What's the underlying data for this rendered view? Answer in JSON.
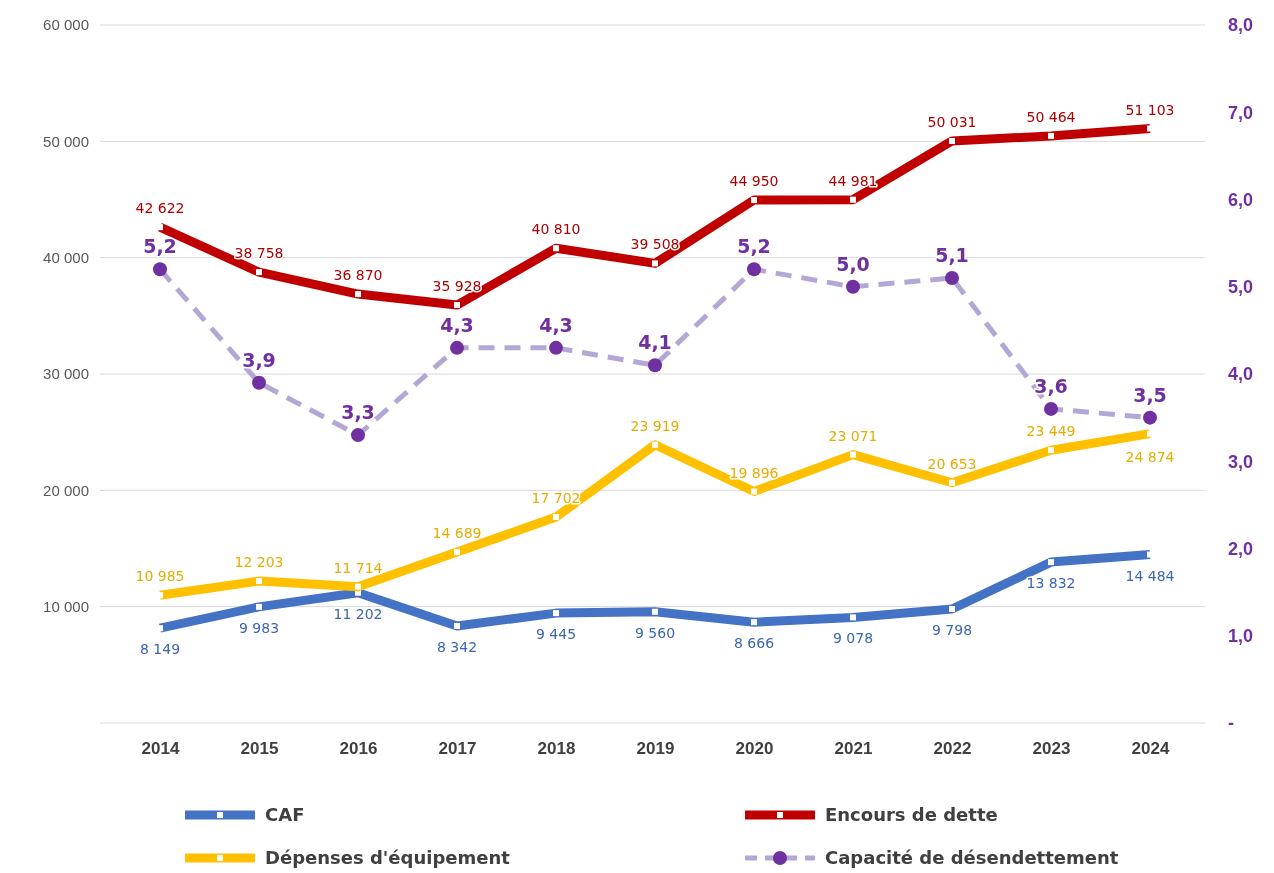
{
  "chart_data": {
    "type": "line",
    "categories": [
      "2014",
      "2015",
      "2016",
      "2017",
      "2018",
      "2019",
      "2020",
      "2021",
      "2022",
      "2023",
      "2024"
    ],
    "series": [
      {
        "name": "CAF",
        "color": "#4472c4",
        "marker": "square",
        "values": [
          8149,
          9983,
          11202,
          8342,
          9445,
          9560,
          8666,
          9078,
          9798,
          13832,
          14484
        ],
        "value_labels": [
          "8 149",
          "9 983",
          "11 202",
          "8 342",
          "9 445",
          "9 560",
          "8 666",
          "9 078",
          "9 798",
          "13 832",
          "14 484"
        ]
      },
      {
        "name": "Encours de dette",
        "color": "#c00000",
        "marker": "square",
        "values": [
          42622,
          38758,
          36870,
          35928,
          40810,
          39508,
          44950,
          44981,
          50031,
          50464,
          51103
        ],
        "value_labels": [
          "42 622",
          "38 758",
          "36 870",
          "35 928",
          "40 810",
          "39 508",
          "44 950",
          "44 981",
          "50 031",
          "50 464",
          "51 103"
        ]
      },
      {
        "name": "Dépenses d'équipement",
        "color": "#ffc000",
        "marker": "square",
        "values": [
          10985,
          12203,
          11714,
          14689,
          17702,
          23919,
          19896,
          23071,
          20653,
          23449,
          24874
        ],
        "value_labels": [
          "10 985",
          "12 203",
          "11 714",
          "14 689",
          "17 702",
          "23 919",
          "19 896",
          "23 071",
          "20 653",
          "23 449",
          "24 874"
        ]
      },
      {
        "name": "Capacité de désendettement",
        "color": "#b4a7d6",
        "marker": "circle",
        "line_style": "dashed",
        "axis": "y2",
        "values": [
          5.2,
          3.9,
          3.3,
          4.3,
          4.3,
          4.1,
          5.2,
          5.0,
          5.1,
          3.6,
          3.5
        ],
        "value_labels": [
          "5,2",
          "3,9",
          "3,3",
          "4,3",
          "4,3",
          "4,1",
          "5,2",
          "5,0",
          "5,1",
          "3,6",
          "3,5"
        ]
      }
    ],
    "ylim": [
      0,
      60000
    ],
    "yticks": [
      {
        "value": 0,
        "label": null
      },
      {
        "value": 10000,
        "label": "10 000"
      },
      {
        "value": 20000,
        "label": "20 000"
      },
      {
        "value": 30000,
        "label": "30 000"
      },
      {
        "value": 40000,
        "label": "40 000"
      },
      {
        "value": 50000,
        "label": "50 000"
      },
      {
        "value": 60000,
        "label": "60 000"
      }
    ],
    "y2lim": [
      0,
      8
    ],
    "y2ticks": [
      {
        "value": 0,
        "label": "-"
      },
      {
        "value": 1,
        "label": "1,0"
      },
      {
        "value": 2,
        "label": "2,0"
      },
      {
        "value": 3,
        "label": "3,0"
      },
      {
        "value": 4,
        "label": "4,0"
      },
      {
        "value": 5,
        "label": "5,0"
      },
      {
        "value": 6,
        "label": "6,0"
      },
      {
        "value": 7,
        "label": "7,0"
      },
      {
        "value": 8,
        "label": "8,0"
      }
    ],
    "grid": "y",
    "legend": "bottom"
  }
}
